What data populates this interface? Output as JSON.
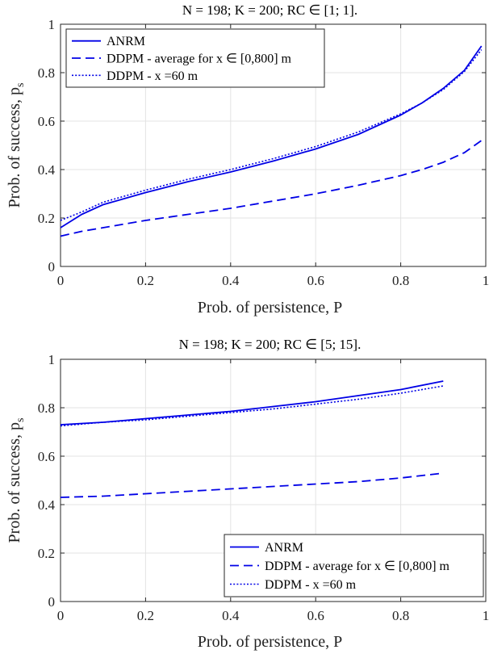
{
  "chart_data": [
    {
      "type": "line",
      "title": "N = 198; K = 200; RC ∈ [1; 1].",
      "xlabel": "Prob. of persistence, P",
      "ylabel": "Prob. of success, p",
      "ylabel_sub": "s",
      "xlim": [
        0,
        1
      ],
      "ylim": [
        0,
        1
      ],
      "xticks": [
        "0",
        "0.2",
        "0.4",
        "0.6",
        "0.8",
        "1"
      ],
      "yticks": [
        "0",
        "0.2",
        "0.4",
        "0.6",
        "0.8",
        "1"
      ],
      "grid": true,
      "legend_placement": "top-left",
      "color": "#0000E6",
      "x": [
        0,
        0.05,
        0.1,
        0.2,
        0.3,
        0.4,
        0.5,
        0.6,
        0.7,
        0.8,
        0.85,
        0.9,
        0.95,
        0.99
      ],
      "series": [
        {
          "name": "ANRM",
          "style": "solid",
          "values": [
            0.16,
            0.215,
            0.255,
            0.305,
            0.35,
            0.39,
            0.435,
            0.485,
            0.545,
            0.625,
            0.675,
            0.735,
            0.81,
            0.91
          ]
        },
        {
          "name": "DDPM - average for x ∈ [0,800] m",
          "style": "dashed",
          "values": [
            0.125,
            0.145,
            0.16,
            0.19,
            0.215,
            0.24,
            0.27,
            0.3,
            0.335,
            0.375,
            0.4,
            0.43,
            0.47,
            0.52
          ]
        },
        {
          "name": "DDPM - x =60 m",
          "style": "dotted",
          "values": [
            0.19,
            0.225,
            0.265,
            0.315,
            0.36,
            0.4,
            0.445,
            0.495,
            0.555,
            0.63,
            0.675,
            0.73,
            0.805,
            0.895
          ]
        }
      ]
    },
    {
      "type": "line",
      "title": "N = 198; K = 200; RC ∈ [5; 15].",
      "xlabel": "Prob. of persistence, P",
      "ylabel": "Prob. of success, p",
      "ylabel_sub": "s",
      "xlim": [
        0,
        1
      ],
      "ylim": [
        0,
        1
      ],
      "xticks": [
        "0",
        "0.2",
        "0.4",
        "0.6",
        "0.8",
        "1"
      ],
      "yticks": [
        "0",
        "0.2",
        "0.4",
        "0.6",
        "0.8",
        "1"
      ],
      "grid": true,
      "legend_placement": "bottom-right",
      "color": "#0000E6",
      "x": [
        0,
        0.1,
        0.2,
        0.3,
        0.4,
        0.5,
        0.6,
        0.7,
        0.8,
        0.9
      ],
      "series": [
        {
          "name": "ANRM",
          "style": "solid",
          "values": [
            0.73,
            0.74,
            0.755,
            0.77,
            0.785,
            0.805,
            0.825,
            0.85,
            0.875,
            0.91
          ]
        },
        {
          "name": "DDPM - average for x ∈ [0,800] m",
          "style": "dashed",
          "values": [
            0.43,
            0.435,
            0.445,
            0.455,
            0.465,
            0.475,
            0.485,
            0.495,
            0.51,
            0.53
          ]
        },
        {
          "name": "DDPM - x =60 m",
          "style": "dotted",
          "values": [
            0.725,
            0.74,
            0.75,
            0.765,
            0.78,
            0.795,
            0.815,
            0.835,
            0.86,
            0.89
          ]
        }
      ]
    }
  ]
}
